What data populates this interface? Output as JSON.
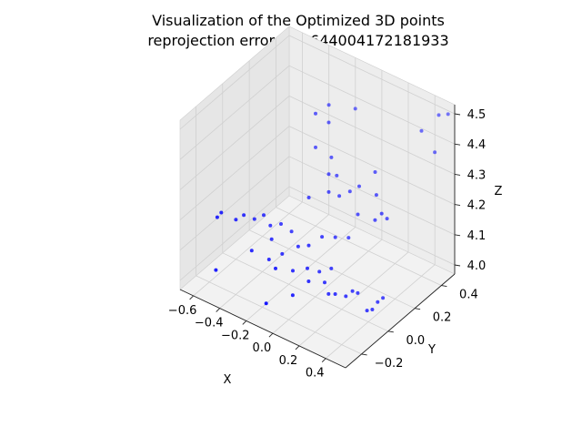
{
  "chart_data": {
    "type": "scatter",
    "projection": "3d",
    "title": "Visualization of the Optimized 3D points",
    "subtitle": "reprojection error = 2.644004172181933",
    "xlabel": "X",
    "ylabel": "Y",
    "zlabel": "Z",
    "xlim": [
      -0.7,
      0.55
    ],
    "ylim": [
      -0.32,
      0.5
    ],
    "zlim": [
      3.97,
      4.53
    ],
    "x_ticks": [
      "−0.6",
      "−0.4",
      "−0.2",
      "0.0",
      "0.2",
      "0.4"
    ],
    "x_tick_values": [
      -0.6,
      -0.4,
      -0.2,
      0.0,
      0.2,
      0.4
    ],
    "y_ticks": [
      "−0.2",
      "0.0",
      "0.2",
      "0.4"
    ],
    "y_tick_values": [
      -0.2,
      0.0,
      0.2,
      0.4
    ],
    "z_ticks": [
      "4.0",
      "4.1",
      "4.2",
      "4.3",
      "4.4",
      "4.5"
    ],
    "z_tick_values": [
      4.0,
      4.1,
      4.2,
      4.3,
      4.4,
      4.5
    ],
    "grid": true,
    "marker_color": "#0000ff",
    "pane_color": "#f2f2f2",
    "grid_color": "#d0d0d0",
    "points": [
      [
        -0.62,
        -0.12,
        4.15
      ],
      [
        -0.61,
        -0.1,
        4.16
      ],
      [
        -0.55,
        -0.05,
        4.13
      ],
      [
        -0.52,
        -0.02,
        4.14
      ],
      [
        -0.48,
        0.02,
        4.12
      ],
      [
        -0.44,
        0.05,
        4.13
      ],
      [
        -0.4,
        0.06,
        4.1
      ],
      [
        -0.34,
        0.08,
        4.11
      ],
      [
        -0.28,
        0.1,
        4.09
      ],
      [
        -0.55,
        -0.2,
        4.02
      ],
      [
        -0.2,
        -0.1,
        4.06
      ],
      [
        -0.12,
        -0.05,
        4.05
      ],
      [
        -0.08,
        0.02,
        4.04
      ],
      [
        -0.02,
        0.05,
        4.03
      ],
      [
        0.02,
        0.1,
        4.03
      ],
      [
        -0.15,
        -0.22,
        4.0
      ],
      [
        -0.05,
        -0.12,
        4.01
      ],
      [
        0.1,
        0.0,
        4.0
      ],
      [
        0.18,
        0.05,
        3.99
      ],
      [
        0.2,
        0.08,
        4.0
      ],
      [
        0.22,
        0.1,
        3.99
      ],
      [
        0.35,
        0.12,
        3.98
      ],
      [
        0.37,
        0.14,
        3.99
      ],
      [
        0.35,
        0.08,
        3.97
      ],
      [
        0.33,
        0.06,
        3.97
      ],
      [
        -0.1,
        0.05,
        4.1
      ],
      [
        -0.05,
        0.1,
        4.12
      ],
      [
        0.0,
        0.15,
        4.11
      ],
      [
        0.05,
        0.2,
        4.1
      ],
      [
        -0.2,
        0.15,
        4.2
      ],
      [
        -0.15,
        0.25,
        4.25
      ],
      [
        -0.1,
        0.2,
        4.22
      ],
      [
        -0.3,
        0.3,
        4.4
      ],
      [
        -0.25,
        0.35,
        4.42
      ],
      [
        -0.22,
        0.32,
        4.38
      ],
      [
        -0.28,
        0.28,
        4.3
      ],
      [
        -0.18,
        0.3,
        4.28
      ],
      [
        -0.12,
        0.28,
        4.24
      ],
      [
        -0.06,
        0.24,
        4.2
      ],
      [
        0.0,
        0.26,
        4.22
      ],
      [
        0.05,
        0.28,
        4.24
      ],
      [
        0.1,
        0.22,
        4.18
      ],
      [
        0.25,
        0.2,
        4.2
      ],
      [
        0.28,
        0.22,
        4.22
      ],
      [
        0.3,
        0.24,
        4.2
      ],
      [
        0.2,
        0.26,
        4.25
      ],
      [
        0.15,
        0.3,
        4.3
      ],
      [
        -0.1,
        0.4,
        4.42
      ],
      [
        0.4,
        0.4,
        4.45
      ],
      [
        0.48,
        0.45,
        4.5
      ],
      [
        0.52,
        0.48,
        4.5
      ],
      [
        0.5,
        0.4,
        4.4
      ],
      [
        -0.35,
        0.02,
        4.08
      ],
      [
        -0.3,
        -0.05,
        4.05
      ],
      [
        -0.25,
        0.0,
        4.06
      ],
      [
        0.05,
        0.02,
        4.02
      ],
      [
        0.15,
        0.0,
        4.01
      ],
      [
        -0.4,
        -0.08,
        4.07
      ],
      [
        0.0,
        -0.05,
        4.04
      ],
      [
        -0.18,
        0.05,
        4.08
      ]
    ]
  }
}
